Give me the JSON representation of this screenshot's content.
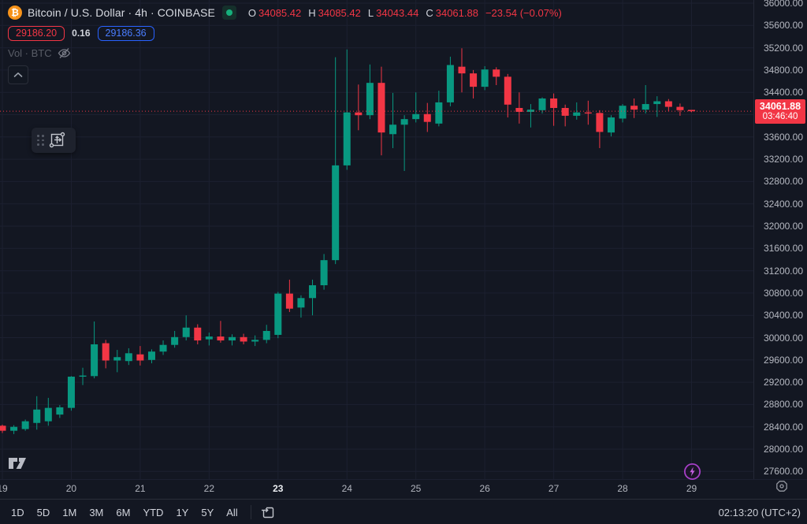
{
  "header": {
    "symbol_title": "Bitcoin / U.S. Dollar · 4h · COINBASE",
    "logo_glyph": "₿",
    "ohlc": {
      "o_label": "O",
      "o": "34085.42",
      "h_label": "H",
      "h": "34085.42",
      "l_label": "L",
      "l": "34043.44",
      "c_label": "C",
      "c": "34061.88",
      "change": "−23.54 (−0.07%)"
    },
    "bid": "29186.20",
    "spread": "0.16",
    "ask": "29186.36",
    "volume_label": "Vol · BTC"
  },
  "chart_data": {
    "type": "candlestick",
    "symbol": "Bitcoin / U.S. Dollar",
    "interval": "4h",
    "exchange": "COINBASE",
    "up_color": "#089981",
    "down_color": "#f23645",
    "grid": true,
    "price_axis": {
      "min": 27600,
      "max": 36000,
      "step": 400,
      "format": "0.00"
    },
    "time_axis": {
      "labels": [
        "19",
        "20",
        "21",
        "22",
        "23",
        "24",
        "25",
        "26",
        "27",
        "28",
        "29"
      ],
      "bold_labels": [
        "23"
      ]
    },
    "last_price": 34061.88,
    "last_price_text": "34061.88",
    "countdown": "03:46:40",
    "candles_ohlc": [
      [
        28420,
        28440,
        28290,
        28330
      ],
      [
        28330,
        28430,
        28270,
        28400
      ],
      [
        28360,
        28530,
        28330,
        28500
      ],
      [
        28470,
        28950,
        28350,
        28710
      ],
      [
        28500,
        28920,
        28420,
        28740
      ],
      [
        28620,
        28790,
        28560,
        28750
      ],
      [
        28740,
        29310,
        28690,
        29300
      ],
      [
        29300,
        29460,
        29150,
        29320
      ],
      [
        29310,
        30290,
        29270,
        29880
      ],
      [
        29900,
        29960,
        29450,
        29590
      ],
      [
        29590,
        29780,
        29380,
        29650
      ],
      [
        29580,
        29810,
        29510,
        29720
      ],
      [
        29700,
        29850,
        29500,
        29590
      ],
      [
        29600,
        29790,
        29540,
        29750
      ],
      [
        29750,
        29950,
        29690,
        29870
      ],
      [
        29870,
        30120,
        29820,
        30010
      ],
      [
        30010,
        30400,
        29950,
        30180
      ],
      [
        30180,
        30240,
        29880,
        29950
      ],
      [
        29970,
        30090,
        29860,
        30020
      ],
      [
        30020,
        30300,
        29910,
        29950
      ],
      [
        29950,
        30060,
        29860,
        30010
      ],
      [
        30010,
        30070,
        29880,
        29930
      ],
      [
        29930,
        30040,
        29850,
        29960
      ],
      [
        29960,
        30230,
        29900,
        30120
      ],
      [
        30050,
        30820,
        29990,
        30790
      ],
      [
        30790,
        31040,
        30460,
        30520
      ],
      [
        30540,
        30760,
        30360,
        30710
      ],
      [
        30710,
        31040,
        30400,
        30940
      ],
      [
        30940,
        31500,
        30860,
        31390
      ],
      [
        31390,
        35030,
        31320,
        33090
      ],
      [
        33090,
        35170,
        33010,
        34040
      ],
      [
        34040,
        34540,
        33720,
        33990
      ],
      [
        33990,
        34900,
        33920,
        34570
      ],
      [
        34570,
        34860,
        33270,
        33680
      ],
      [
        33650,
        34390,
        33400,
        33820
      ],
      [
        33820,
        33990,
        32990,
        33920
      ],
      [
        33920,
        34400,
        33860,
        34010
      ],
      [
        34010,
        34210,
        33690,
        33870
      ],
      [
        33840,
        34430,
        33790,
        34220
      ],
      [
        34220,
        35040,
        34150,
        34890
      ],
      [
        34860,
        35190,
        34400,
        34740
      ],
      [
        34740,
        34800,
        34290,
        34500
      ],
      [
        34500,
        34870,
        34440,
        34810
      ],
      [
        34810,
        34850,
        34530,
        34680
      ],
      [
        34680,
        34730,
        33950,
        34180
      ],
      [
        34120,
        34400,
        33840,
        34050
      ],
      [
        34050,
        34190,
        33770,
        34090
      ],
      [
        34080,
        34310,
        34020,
        34290
      ],
      [
        34290,
        34380,
        33800,
        34120
      ],
      [
        34120,
        34180,
        33790,
        33980
      ],
      [
        33980,
        34220,
        33910,
        34040
      ],
      [
        34040,
        34250,
        33820,
        34030
      ],
      [
        34030,
        34080,
        33400,
        33690
      ],
      [
        33680,
        33990,
        33610,
        33950
      ],
      [
        33930,
        34190,
        33860,
        34160
      ],
      [
        34160,
        34290,
        33940,
        34090
      ],
      [
        34090,
        34530,
        34020,
        34190
      ],
      [
        34190,
        34330,
        33960,
        34240
      ],
      [
        34240,
        34280,
        34060,
        34140
      ],
      [
        34140,
        34200,
        33980,
        34080
      ],
      [
        34085.42,
        34085.42,
        34043.44,
        34061.88
      ]
    ]
  },
  "toolbar": {
    "ranges": [
      "1D",
      "5D",
      "1M",
      "3M",
      "6M",
      "YTD",
      "1Y",
      "5Y",
      "All"
    ],
    "clock": "02:13:20 (UTC+2)"
  },
  "colors": {
    "background": "#131722",
    "grid": "#1c2030",
    "up": "#089981",
    "down": "#f23645",
    "accent_blue": "#2962ff",
    "accent_purple": "#b04fd8",
    "bitcoin_orange": "#f7931a"
  }
}
